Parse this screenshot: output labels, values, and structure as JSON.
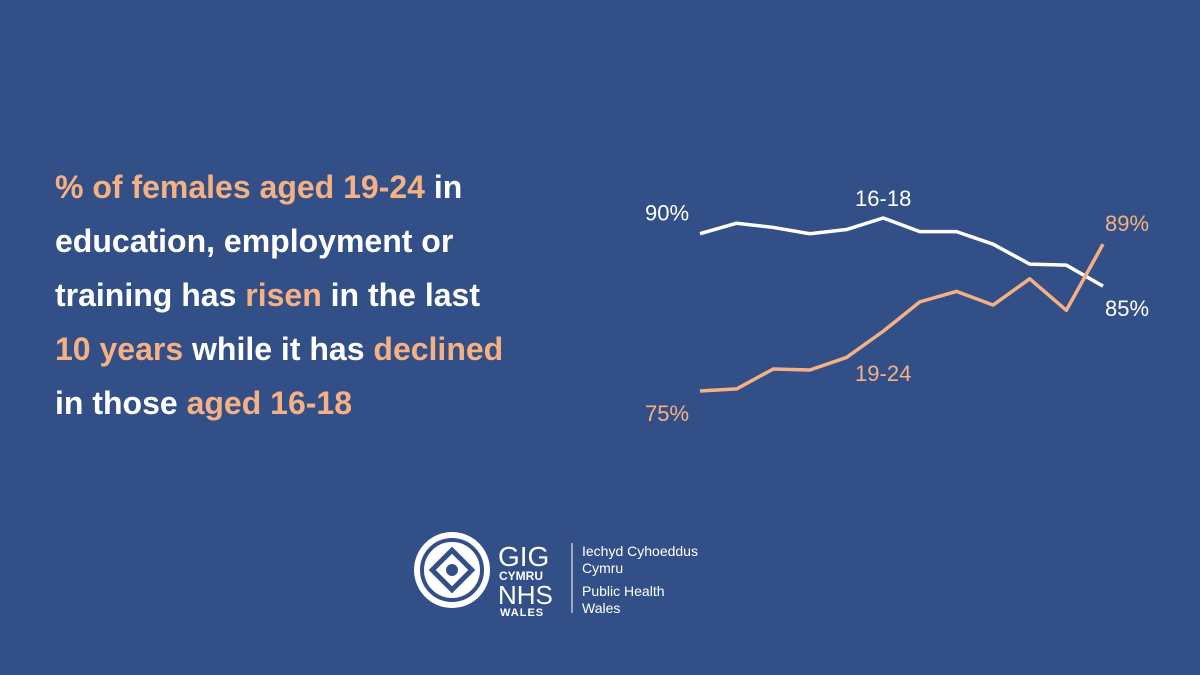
{
  "headline": {
    "highlight_color": "#f5b183",
    "text_color": "#ffffff",
    "lines": [
      [
        {
          "text": "% of females aged 19-24",
          "highlight": true
        },
        {
          "text": " in",
          "highlight": false
        }
      ],
      [
        {
          "text": "education, employment or",
          "highlight": false
        }
      ],
      [
        {
          "text": "training has ",
          "highlight": false
        },
        {
          "text": "risen",
          "highlight": true
        },
        {
          "text": " in the last",
          "highlight": false
        }
      ],
      [
        {
          "text": "10 years",
          "highlight": true
        },
        {
          "text": " while it has ",
          "highlight": false
        },
        {
          "text": "declined",
          "highlight": true
        }
      ],
      [
        {
          "text": "in those ",
          "highlight": false
        },
        {
          "text": "aged 16-18",
          "highlight": true
        }
      ]
    ]
  },
  "chart_data": {
    "type": "line",
    "series": [
      {
        "name": "16-18",
        "color": "#ffffff",
        "values": [
          90,
          91.0,
          90.6,
          90,
          90.4,
          91.5,
          90.2,
          90.2,
          89.0,
          87.1,
          87.0,
          85
        ],
        "value_labels": [
          "90%",
          null,
          null,
          null,
          null,
          null,
          null,
          null,
          null,
          null,
          null,
          "85%"
        ]
      },
      {
        "name": "19-24",
        "color": "#f5b183",
        "values": [
          75,
          75.2,
          77.1,
          77,
          78.2,
          80.7,
          83.5,
          84.5,
          83.2,
          85.7,
          82.7,
          89
        ],
        "value_labels": [
          "75%",
          null,
          null,
          null,
          null,
          null,
          null,
          null,
          null,
          null,
          null,
          "89%"
        ]
      }
    ]
  },
  "logo": {
    "gig": "GIG",
    "cymru": "CYMRU",
    "nhs": "NHS",
    "wales": "WALES",
    "lines": [
      "Iechyd Cyhoeddus",
      "Cymru",
      "Public Health",
      "Wales"
    ]
  }
}
